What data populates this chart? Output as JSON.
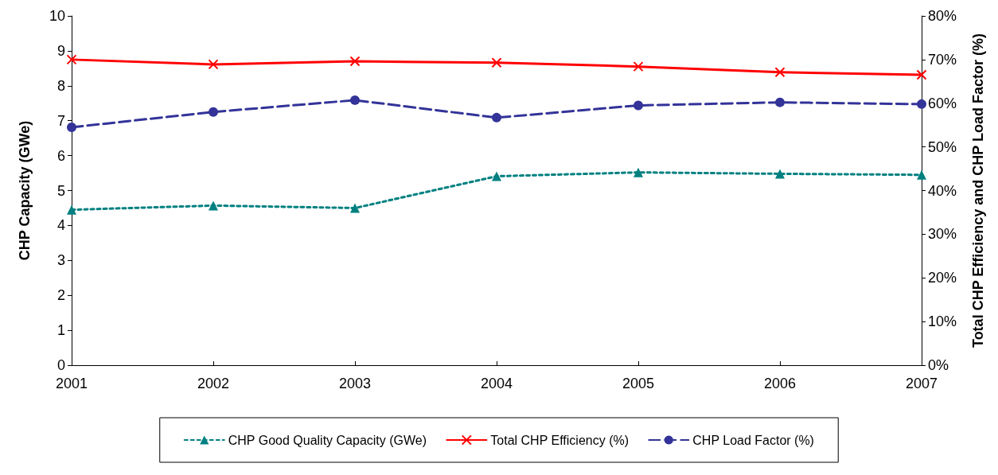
{
  "chart_data": {
    "type": "line",
    "categories": [
      "2001",
      "2002",
      "2003",
      "2004",
      "2005",
      "2006",
      "2007"
    ],
    "ylabel": "CHP Capacity (GWe)",
    "y2label": "Total CHP Efficiency and CHP Load Factor (%)",
    "ylim": [
      0,
      10
    ],
    "yticks": [
      0,
      1,
      2,
      3,
      4,
      5,
      6,
      7,
      8,
      9,
      10
    ],
    "y2lim": [
      0,
      80
    ],
    "y2ticks": [
      {
        "value": 0,
        "label": "0%"
      },
      {
        "value": 10,
        "label": "10%"
      },
      {
        "value": 20,
        "label": "20%"
      },
      {
        "value": 30,
        "label": "30%"
      },
      {
        "value": 40,
        "label": "40%"
      },
      {
        "value": 50,
        "label": "50%"
      },
      {
        "value": 60,
        "label": "60%"
      },
      {
        "value": 70,
        "label": "70%"
      },
      {
        "value": 80,
        "label": "80%"
      }
    ],
    "series": [
      {
        "name": "CHP Good Quality Capacity (GWe)",
        "color": "#008080",
        "marker": "triangle",
        "line_style": "dotted",
        "values": [
          4.45,
          4.57,
          4.5,
          5.41,
          5.52,
          5.48,
          5.45
        ]
      },
      {
        "name": "Total CHP Efficiency (%)",
        "color": "#ff0000",
        "marker": "cross",
        "line_style": "solid",
        "axis": "y2",
        "values": [
          70.0,
          68.9,
          69.6,
          69.3,
          68.4,
          67.1,
          66.5
        ]
      },
      {
        "name": "CHP Load Factor (%)",
        "color": "#333399",
        "marker": "circle",
        "line_style": "dashed",
        "axis": "y2",
        "values": [
          54.5,
          58.0,
          60.7,
          56.7,
          59.5,
          60.2,
          59.8
        ]
      }
    ],
    "grid": false,
    "legend": "bottom"
  }
}
